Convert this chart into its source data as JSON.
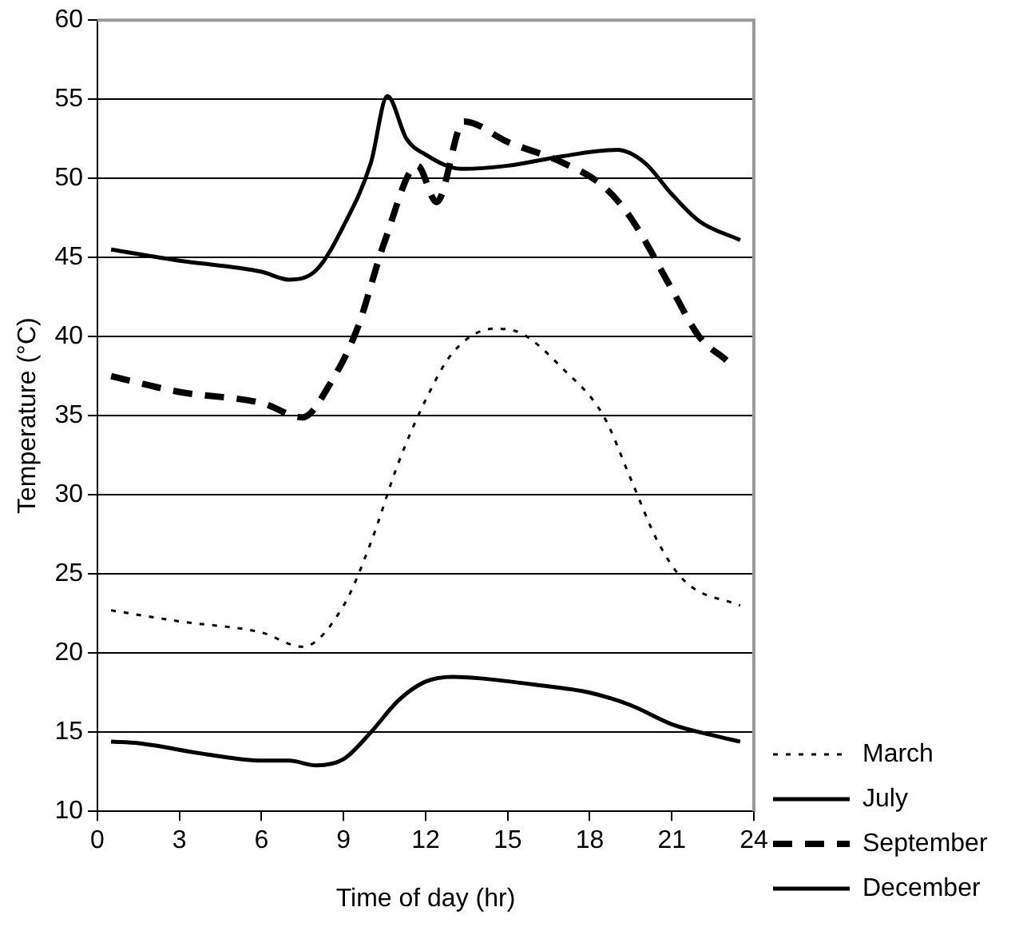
{
  "chart_data": {
    "type": "line",
    "xlabel": "Time of day (hr)",
    "ylabel": "Temperature (°C)",
    "xlim": [
      0,
      24
    ],
    "xticks": [
      0,
      3,
      6,
      9,
      12,
      15,
      18,
      21,
      24
    ],
    "ylim": [
      10,
      60
    ],
    "yticks": [
      10,
      15,
      20,
      25,
      30,
      35,
      40,
      45,
      50,
      55,
      60
    ],
    "grid": "y",
    "legend": "right",
    "marker": "none",
    "series": [
      {
        "name": "March",
        "color": "#000000",
        "line_style": "dotted",
        "x": [
          0.5,
          3,
          6,
          7.5,
          9,
          10,
          11,
          12,
          13,
          14.5,
          15.5,
          17,
          18.5,
          19.5,
          20.5,
          21.5,
          23.5
        ],
        "values": [
          22.7,
          22,
          21.3,
          20.4,
          23,
          27,
          32,
          36,
          39,
          40.5,
          40.2,
          38,
          35,
          31,
          27,
          24.5,
          23
        ]
      },
      {
        "name": "July",
        "color": "#000000",
        "line_style": "solid",
        "x": [
          0.5,
          3,
          6,
          7,
          8,
          9,
          10,
          10.6,
          11.3,
          12,
          13.3,
          15,
          17,
          19,
          20,
          21,
          22,
          23.5
        ],
        "values": [
          45.5,
          44.8,
          44.1,
          43.6,
          44.2,
          47,
          51,
          55.2,
          52.5,
          51.5,
          50.6,
          50.8,
          51.4,
          51.8,
          51,
          49,
          47.3,
          46.1
        ]
      },
      {
        "name": "September",
        "color": "#000000",
        "line_style": "dashed",
        "x": [
          0.5,
          3,
          6,
          7.5,
          8.5,
          9.5,
          10.5,
          11.7,
          12.4,
          13.4,
          15,
          17,
          18.5,
          19.5,
          21,
          22,
          23
        ],
        "values": [
          37.5,
          36.5,
          35.8,
          34.9,
          37,
          40.5,
          46,
          50.8,
          48.5,
          53.6,
          52.3,
          51,
          49.5,
          47.5,
          43,
          40,
          38.5
        ]
      },
      {
        "name": "December",
        "color": "#000000",
        "line_style": "solid",
        "x": [
          0.5,
          1.5,
          4,
          6,
          7,
          8,
          9,
          10,
          11,
          12,
          13,
          14,
          16,
          18,
          19.5,
          21,
          22.5,
          23.5
        ],
        "values": [
          14.4,
          14.3,
          13.6,
          13.2,
          13.2,
          12.9,
          13.3,
          15,
          17,
          18.2,
          18.5,
          18.4,
          18,
          17.5,
          16.7,
          15.5,
          14.8,
          14.4
        ]
      }
    ]
  }
}
